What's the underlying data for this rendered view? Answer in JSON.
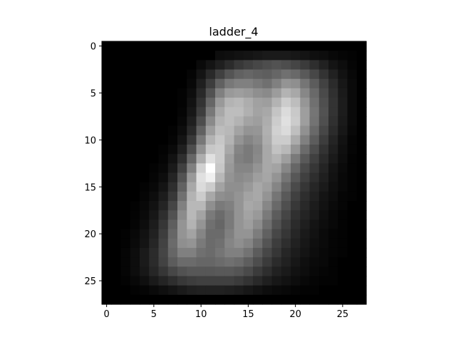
{
  "chart_data": {
    "type": "heatmap",
    "title": "ladder_4",
    "colormap": "gray",
    "xlabel": "",
    "ylabel": "",
    "xticks": [
      "0",
      "5",
      "10",
      "15",
      "20",
      "25"
    ],
    "yticks": [
      "0",
      "5",
      "10",
      "15",
      "20",
      "25"
    ],
    "x_range": [
      -0.5,
      27.5
    ],
    "y_range": [
      -0.5,
      27.5
    ],
    "y_inverted": true,
    "grid": false,
    "rows": 28,
    "cols": 28,
    "values": [
      [
        0.0,
        0.0,
        0.0,
        0.0,
        0.0,
        0.0,
        0.0,
        0.0,
        0.0,
        0.0,
        0.0,
        0.0,
        0.0,
        0.0,
        0.0,
        0.0,
        0.0,
        0.0,
        0.0,
        0.0,
        0.0,
        0.0,
        0.0,
        0.0,
        0.0,
        0.0,
        0.0,
        0.0
      ],
      [
        0.0,
        0.0,
        0.0,
        0.0,
        0.0,
        0.0,
        0.0,
        0.0,
        0.0,
        0.0,
        0.0,
        0.0,
        0.05,
        0.06,
        0.07,
        0.08,
        0.09,
        0.1,
        0.1,
        0.1,
        0.09,
        0.08,
        0.06,
        0.05,
        0.03,
        0.02,
        0.01,
        0.0
      ],
      [
        0.0,
        0.0,
        0.0,
        0.0,
        0.0,
        0.0,
        0.0,
        0.0,
        0.0,
        0.0,
        0.04,
        0.08,
        0.12,
        0.17,
        0.22,
        0.25,
        0.28,
        0.3,
        0.32,
        0.3,
        0.27,
        0.23,
        0.18,
        0.13,
        0.08,
        0.05,
        0.02,
        0.0
      ],
      [
        0.0,
        0.0,
        0.0,
        0.0,
        0.0,
        0.0,
        0.0,
        0.0,
        0.0,
        0.02,
        0.08,
        0.16,
        0.25,
        0.33,
        0.38,
        0.4,
        0.38,
        0.37,
        0.4,
        0.44,
        0.41,
        0.35,
        0.28,
        0.2,
        0.13,
        0.07,
        0.03,
        0.0
      ],
      [
        0.0,
        0.0,
        0.0,
        0.0,
        0.0,
        0.0,
        0.0,
        0.0,
        0.0,
        0.03,
        0.12,
        0.24,
        0.38,
        0.47,
        0.5,
        0.5,
        0.47,
        0.44,
        0.5,
        0.58,
        0.56,
        0.46,
        0.36,
        0.26,
        0.17,
        0.09,
        0.04,
        0.0
      ],
      [
        0.0,
        0.0,
        0.0,
        0.0,
        0.0,
        0.0,
        0.0,
        0.0,
        0.01,
        0.05,
        0.16,
        0.32,
        0.5,
        0.6,
        0.62,
        0.6,
        0.56,
        0.54,
        0.61,
        0.7,
        0.66,
        0.53,
        0.41,
        0.29,
        0.19,
        0.1,
        0.04,
        0.0
      ],
      [
        0.0,
        0.0,
        0.0,
        0.0,
        0.0,
        0.0,
        0.0,
        0.0,
        0.01,
        0.07,
        0.2,
        0.4,
        0.6,
        0.7,
        0.72,
        0.68,
        0.63,
        0.62,
        0.7,
        0.8,
        0.74,
        0.59,
        0.44,
        0.31,
        0.2,
        0.11,
        0.04,
        0.0
      ],
      [
        0.0,
        0.0,
        0.0,
        0.0,
        0.0,
        0.0,
        0.0,
        0.0,
        0.02,
        0.09,
        0.24,
        0.47,
        0.66,
        0.74,
        0.74,
        0.69,
        0.64,
        0.66,
        0.77,
        0.86,
        0.79,
        0.62,
        0.46,
        0.32,
        0.2,
        0.11,
        0.04,
        0.0
      ],
      [
        0.0,
        0.0,
        0.0,
        0.0,
        0.0,
        0.0,
        0.0,
        0.0,
        0.03,
        0.12,
        0.3,
        0.54,
        0.7,
        0.74,
        0.7,
        0.64,
        0.62,
        0.68,
        0.8,
        0.88,
        0.8,
        0.62,
        0.45,
        0.31,
        0.19,
        0.1,
        0.04,
        0.0
      ],
      [
        0.0,
        0.0,
        0.0,
        0.0,
        0.0,
        0.0,
        0.0,
        0.01,
        0.05,
        0.16,
        0.38,
        0.62,
        0.74,
        0.72,
        0.64,
        0.58,
        0.59,
        0.69,
        0.82,
        0.86,
        0.75,
        0.57,
        0.41,
        0.28,
        0.17,
        0.09,
        0.03,
        0.0
      ],
      [
        0.0,
        0.0,
        0.0,
        0.0,
        0.0,
        0.0,
        0.0,
        0.02,
        0.08,
        0.22,
        0.47,
        0.7,
        0.78,
        0.7,
        0.58,
        0.52,
        0.56,
        0.68,
        0.8,
        0.8,
        0.67,
        0.5,
        0.36,
        0.24,
        0.14,
        0.07,
        0.02,
        0.0
      ],
      [
        0.0,
        0.0,
        0.0,
        0.0,
        0.0,
        0.0,
        0.01,
        0.04,
        0.12,
        0.3,
        0.57,
        0.78,
        0.8,
        0.66,
        0.52,
        0.48,
        0.53,
        0.66,
        0.76,
        0.72,
        0.58,
        0.42,
        0.3,
        0.2,
        0.12,
        0.06,
        0.02,
        0.0
      ],
      [
        0.0,
        0.0,
        0.0,
        0.0,
        0.0,
        0.0,
        0.02,
        0.07,
        0.18,
        0.4,
        0.68,
        0.88,
        0.8,
        0.62,
        0.5,
        0.48,
        0.54,
        0.66,
        0.7,
        0.62,
        0.48,
        0.35,
        0.25,
        0.17,
        0.1,
        0.05,
        0.01,
        0.0
      ],
      [
        0.0,
        0.0,
        0.0,
        0.0,
        0.0,
        0.01,
        0.03,
        0.1,
        0.25,
        0.5,
        0.82,
        1.0,
        0.78,
        0.6,
        0.52,
        0.52,
        0.58,
        0.66,
        0.64,
        0.53,
        0.4,
        0.29,
        0.21,
        0.14,
        0.08,
        0.04,
        0.01,
        0.0
      ],
      [
        0.0,
        0.0,
        0.0,
        0.0,
        0.0,
        0.02,
        0.05,
        0.14,
        0.32,
        0.6,
        0.88,
        0.94,
        0.72,
        0.58,
        0.54,
        0.56,
        0.62,
        0.65,
        0.58,
        0.46,
        0.34,
        0.25,
        0.18,
        0.12,
        0.07,
        0.03,
        0.01,
        0.0
      ],
      [
        0.0,
        0.0,
        0.0,
        0.0,
        0.01,
        0.03,
        0.08,
        0.18,
        0.38,
        0.66,
        0.86,
        0.8,
        0.64,
        0.56,
        0.56,
        0.6,
        0.66,
        0.62,
        0.52,
        0.4,
        0.29,
        0.21,
        0.15,
        0.1,
        0.06,
        0.03,
        0.01,
        0.0
      ],
      [
        0.0,
        0.0,
        0.0,
        0.0,
        0.02,
        0.05,
        0.11,
        0.22,
        0.44,
        0.7,
        0.8,
        0.66,
        0.56,
        0.54,
        0.58,
        0.64,
        0.66,
        0.58,
        0.46,
        0.35,
        0.25,
        0.18,
        0.13,
        0.08,
        0.05,
        0.02,
        0.01,
        0.0
      ],
      [
        0.0,
        0.0,
        0.0,
        0.01,
        0.03,
        0.07,
        0.14,
        0.27,
        0.5,
        0.72,
        0.72,
        0.56,
        0.48,
        0.5,
        0.58,
        0.66,
        0.64,
        0.53,
        0.41,
        0.31,
        0.22,
        0.16,
        0.11,
        0.07,
        0.04,
        0.02,
        0.0,
        0.0
      ],
      [
        0.0,
        0.0,
        0.0,
        0.01,
        0.04,
        0.09,
        0.18,
        0.32,
        0.55,
        0.72,
        0.64,
        0.48,
        0.42,
        0.48,
        0.58,
        0.64,
        0.6,
        0.48,
        0.36,
        0.27,
        0.19,
        0.14,
        0.1,
        0.06,
        0.03,
        0.01,
        0.0,
        0.0
      ],
      [
        0.0,
        0.0,
        0.0,
        0.02,
        0.05,
        0.11,
        0.21,
        0.37,
        0.58,
        0.7,
        0.58,
        0.44,
        0.4,
        0.48,
        0.58,
        0.62,
        0.55,
        0.43,
        0.32,
        0.24,
        0.17,
        0.12,
        0.08,
        0.05,
        0.03,
        0.01,
        0.0,
        0.0
      ],
      [
        0.0,
        0.0,
        0.01,
        0.03,
        0.07,
        0.13,
        0.24,
        0.4,
        0.58,
        0.64,
        0.52,
        0.42,
        0.42,
        0.5,
        0.58,
        0.58,
        0.49,
        0.38,
        0.28,
        0.21,
        0.15,
        0.1,
        0.07,
        0.04,
        0.02,
        0.01,
        0.0,
        0.0
      ],
      [
        0.0,
        0.0,
        0.01,
        0.04,
        0.08,
        0.15,
        0.26,
        0.42,
        0.56,
        0.58,
        0.48,
        0.42,
        0.44,
        0.52,
        0.56,
        0.52,
        0.43,
        0.33,
        0.24,
        0.18,
        0.13,
        0.09,
        0.06,
        0.04,
        0.02,
        0.01,
        0.0,
        0.0
      ],
      [
        0.0,
        0.0,
        0.02,
        0.05,
        0.1,
        0.17,
        0.27,
        0.4,
        0.5,
        0.5,
        0.44,
        0.42,
        0.46,
        0.5,
        0.5,
        0.45,
        0.36,
        0.28,
        0.21,
        0.15,
        0.11,
        0.08,
        0.05,
        0.03,
        0.02,
        0.01,
        0.0,
        0.0
      ],
      [
        0.0,
        0.0,
        0.02,
        0.05,
        0.1,
        0.17,
        0.26,
        0.36,
        0.42,
        0.42,
        0.4,
        0.4,
        0.42,
        0.44,
        0.42,
        0.37,
        0.3,
        0.23,
        0.17,
        0.13,
        0.09,
        0.06,
        0.04,
        0.03,
        0.01,
        0.0,
        0.0,
        0.0
      ],
      [
        0.0,
        0.0,
        0.02,
        0.05,
        0.09,
        0.15,
        0.21,
        0.28,
        0.32,
        0.34,
        0.34,
        0.34,
        0.35,
        0.35,
        0.33,
        0.29,
        0.23,
        0.18,
        0.13,
        0.1,
        0.07,
        0.05,
        0.03,
        0.02,
        0.01,
        0.0,
        0.0,
        0.0
      ],
      [
        0.0,
        0.0,
        0.01,
        0.03,
        0.06,
        0.1,
        0.14,
        0.18,
        0.22,
        0.24,
        0.25,
        0.25,
        0.25,
        0.25,
        0.23,
        0.2,
        0.16,
        0.12,
        0.09,
        0.07,
        0.05,
        0.03,
        0.02,
        0.01,
        0.01,
        0.0,
        0.0,
        0.0
      ],
      [
        0.0,
        0.0,
        0.0,
        0.01,
        0.02,
        0.04,
        0.06,
        0.08,
        0.1,
        0.12,
        0.13,
        0.13,
        0.13,
        0.12,
        0.11,
        0.09,
        0.07,
        0.05,
        0.04,
        0.03,
        0.02,
        0.01,
        0.01,
        0.0,
        0.0,
        0.0,
        0.0,
        0.0
      ],
      [
        0.0,
        0.0,
        0.0,
        0.0,
        0.0,
        0.0,
        0.0,
        0.0,
        0.0,
        0.0,
        0.0,
        0.0,
        0.0,
        0.0,
        0.0,
        0.0,
        0.0,
        0.0,
        0.0,
        0.0,
        0.0,
        0.0,
        0.0,
        0.0,
        0.0,
        0.0,
        0.0,
        0.0
      ]
    ]
  }
}
